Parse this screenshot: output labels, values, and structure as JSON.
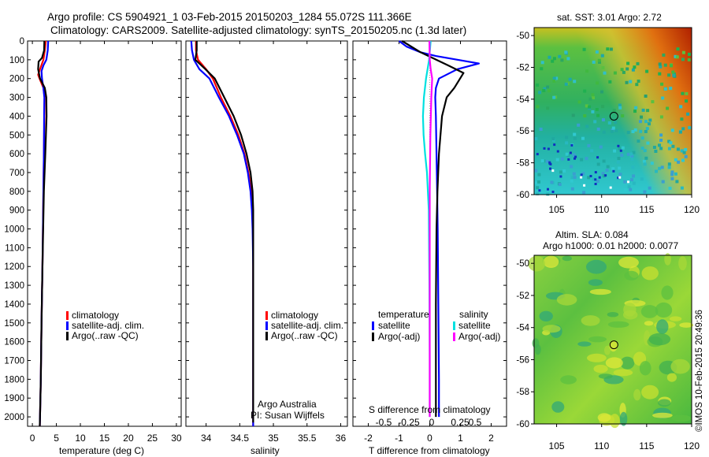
{
  "header": {
    "line1": "Argo profile: CS 5904921_1 03-Feb-2015 20150203_1284 55.072S 111.366E",
    "line2": "Climatology: CARS2009. Satellite-adjusted climatology: synTS_20150205.nc (1.3d later)"
  },
  "footer": {
    "argo_line1": "Argo Australia",
    "argo_line2": "PI: Susan Wijffels",
    "imos_stamp": "©IMOS 10-Feb-2015 20:49:36"
  },
  "colors": {
    "climatology": "#ff0000",
    "satellite": "#0000ff",
    "argo": "#000000",
    "sal_satellite": "#00e0e0",
    "sal_argo": "#ff00ff"
  },
  "chart_data": [
    {
      "type": "line",
      "name": "temperature",
      "xlabel": "temperature (deg C)",
      "ylabel": "",
      "xlim": [
        -1,
        31
      ],
      "ylim": [
        2050,
        0
      ],
      "xticks": [
        0,
        5,
        10,
        15,
        20,
        25,
        30
      ],
      "yticks": [
        0,
        100,
        200,
        300,
        400,
        500,
        600,
        700,
        800,
        900,
        1000,
        1100,
        1200,
        1300,
        1400,
        1500,
        1600,
        1700,
        1800,
        1900,
        2000
      ],
      "legend": {
        "position": "lower-center",
        "entries": [
          "climatology",
          "satellite-adj. clim.",
          "Argo(..raw -QC)"
        ]
      },
      "series": [
        {
          "name": "climatology",
          "color": "#ff0000",
          "x": [
            2.8,
            2.6,
            2.3,
            1.6,
            1.2,
            1.5,
            2.3,
            2.55,
            2.5,
            2.4,
            2.3,
            2.2,
            2.1,
            1.9,
            1.75,
            1.6,
            1.55
          ],
          "y": [
            0,
            50,
            100,
            150,
            180,
            200,
            250,
            300,
            400,
            600,
            800,
            1000,
            1200,
            1500,
            1800,
            2000,
            2050
          ]
        },
        {
          "name": "satellite-adj. clim.",
          "color": "#0000ff",
          "x": [
            3.3,
            3.2,
            2.9,
            2.3,
            1.9,
            2.0,
            2.3,
            2.5,
            2.45,
            2.4,
            2.3,
            2.2,
            2.1,
            1.9,
            1.75,
            1.6,
            1.55
          ],
          "y": [
            0,
            50,
            100,
            130,
            160,
            200,
            250,
            300,
            400,
            600,
            800,
            1000,
            1200,
            1500,
            1800,
            2000,
            2050
          ]
        },
        {
          "name": "Argo(..raw -QC)",
          "color": "#000000",
          "x": [
            2.5,
            2.45,
            2.0,
            1.3,
            1.2,
            1.6,
            2.6,
            2.9,
            2.95,
            2.7,
            2.4,
            2.25,
            2.1,
            1.9,
            1.75,
            1.6,
            1.55
          ],
          "y": [
            0,
            50,
            90,
            110,
            150,
            200,
            250,
            300,
            400,
            600,
            800,
            1000,
            1200,
            1500,
            1800,
            2000,
            2050
          ]
        }
      ]
    },
    {
      "type": "line",
      "name": "salinity",
      "xlabel": "salinity",
      "ylabel": "",
      "xlim": [
        33.7,
        36.1
      ],
      "ylim": [
        2050,
        0
      ],
      "xticks": [
        34,
        34.5,
        35,
        35.5,
        36
      ],
      "legend": {
        "position": "lower-center",
        "entries": [
          "climatology",
          "satellite-adj. clim.",
          "Argo(..raw -QC)"
        ]
      },
      "series": [
        {
          "name": "climatology",
          "color": "#ff0000",
          "x": [
            33.85,
            33.85,
            33.88,
            34.0,
            34.1,
            34.22,
            34.36,
            34.48,
            34.57,
            34.63,
            34.67,
            34.69,
            34.7,
            34.7,
            34.7,
            34.7
          ],
          "y": [
            0,
            50,
            100,
            150,
            200,
            300,
            400,
            500,
            600,
            700,
            800,
            900,
            1000,
            1200,
            1500,
            2050
          ]
        },
        {
          "name": "satellite-adj. clim.",
          "color": "#0000ff",
          "x": [
            33.78,
            33.79,
            33.82,
            33.9,
            34.05,
            34.19,
            34.34,
            34.46,
            34.56,
            34.62,
            34.66,
            34.68,
            34.69,
            34.7,
            34.7,
            34.7
          ],
          "y": [
            0,
            50,
            100,
            150,
            200,
            300,
            400,
            500,
            600,
            700,
            800,
            900,
            1000,
            1200,
            1500,
            2050
          ]
        },
        {
          "name": "Argo(..raw -QC)",
          "color": "#000000",
          "x": [
            33.86,
            33.86,
            33.84,
            33.99,
            34.13,
            34.27,
            34.41,
            34.52,
            34.6,
            34.66,
            34.69,
            34.7,
            34.7,
            34.7,
            34.7,
            34.7
          ],
          "y": [
            0,
            50,
            100,
            150,
            200,
            300,
            400,
            500,
            600,
            700,
            800,
            900,
            1000,
            1200,
            1500,
            2030
          ]
        }
      ]
    },
    {
      "type": "line",
      "name": "difference",
      "xlabel": "T difference from climatology",
      "top_label": "S difference from climatology",
      "xlim": [
        -2.5,
        2.5
      ],
      "ylim": [
        2050,
        0
      ],
      "xticks": [
        -2,
        -1,
        0,
        1,
        2
      ],
      "s_ticks": [
        "-0.5",
        "-0.25",
        "0",
        "0.25",
        "0.5"
      ],
      "legend": {
        "position": "lower-center",
        "groups": [
          "temperature",
          "salinity"
        ],
        "entries": [
          "satellite",
          "Argo(-adj)",
          "satellite",
          "Argo(-adj)"
        ]
      },
      "series": [
        {
          "name": "temperature satellite",
          "color": "#0000ff",
          "x": [
            -1.0,
            -0.75,
            -0.3,
            0.2,
            1.6,
            0.9,
            0.3,
            0.2,
            0.18,
            0.2,
            0.22,
            0.24,
            0.26,
            0.28,
            0.3,
            0.3
          ],
          "y": [
            0,
            30,
            60,
            80,
            120,
            150,
            200,
            250,
            300,
            400,
            600,
            800,
            1000,
            1400,
            1800,
            2000
          ]
        },
        {
          "name": "temperature Argo(-adj)",
          "color": "#000000",
          "x": [
            -0.9,
            -0.3,
            0.6,
            1.1,
            0.8,
            0.55,
            0.4,
            0.3,
            0.25,
            0.22,
            0.2,
            0.2,
            0.2
          ],
          "y": [
            0,
            60,
            130,
            170,
            250,
            300,
            400,
            600,
            800,
            1000,
            1400,
            1800,
            2000
          ]
        },
        {
          "name": "salinity satellite",
          "color": "#00e0e0",
          "x": [
            0.03,
            -0.02,
            -0.12,
            -0.19,
            -0.22,
            -0.2,
            -0.15,
            -0.09,
            -0.03,
            -0.01,
            0,
            0
          ],
          "y": [
            0,
            100,
            200,
            300,
            400,
            500,
            600,
            700,
            900,
            1300,
            1700,
            2000
          ]
        },
        {
          "name": "salinity Argo(-adj)",
          "color": "#ff00ff",
          "x": [
            -0.01,
            0.0,
            0.03,
            0.08,
            0.05,
            0.02,
            0.0,
            0.0,
            0.0
          ],
          "y": [
            0,
            100,
            150,
            200,
            300,
            500,
            800,
            1300,
            2000
          ]
        }
      ]
    }
  ],
  "maps": [
    {
      "title": "sat. SST: 3.01  Argo: 2.72",
      "xticks": [
        105,
        110,
        115,
        120
      ],
      "yticks": [
        -50,
        -52,
        -54,
        -56,
        -58,
        -60
      ],
      "xlim": [
        102.5,
        120
      ],
      "ylim": [
        -60,
        -49.5
      ],
      "marker": {
        "lon": 111.366,
        "lat": -55.072
      }
    },
    {
      "title_line1": "Altim. SLA: 0.084",
      "title_line2": "Argo h1000: 0.01  h2000: 0.0077",
      "xticks": [
        105,
        110,
        115,
        120
      ],
      "yticks": [
        -50,
        -52,
        -54,
        -56,
        -58,
        -60
      ],
      "xlim": [
        102.5,
        120
      ],
      "ylim": [
        -60,
        -49.5
      ],
      "marker": {
        "lon": 111.366,
        "lat": -55.072
      }
    }
  ]
}
